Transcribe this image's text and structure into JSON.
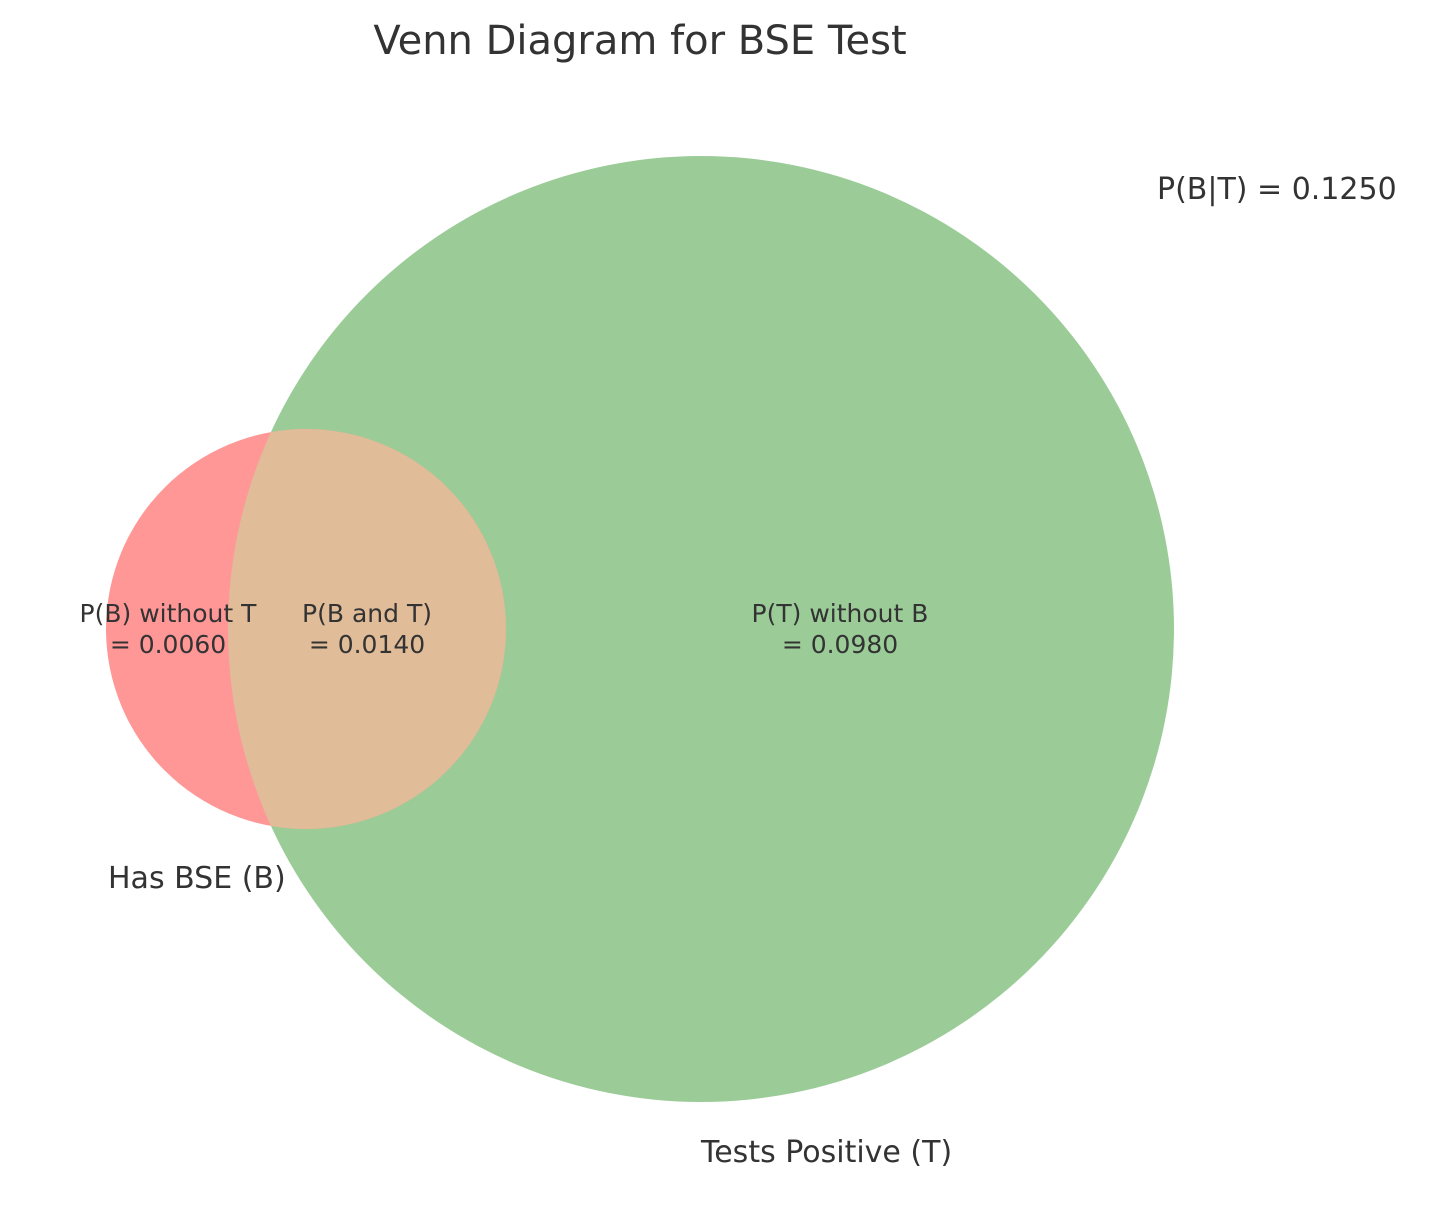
{
  "title": "Venn Diagram for BSE Test",
  "sets": {
    "b": {
      "label": "Has BSE (B)",
      "color": "#ff9797"
    },
    "t": {
      "label": "Tests Positive (T)",
      "color": "#9bcc98"
    },
    "intersection_color": "#e0bc98"
  },
  "regions": {
    "b_only": {
      "line1": "P(B) without T",
      "line2": "= 0.0060",
      "value": 0.006
    },
    "both": {
      "line1": "P(B and T)",
      "line2": "= 0.0140",
      "value": 0.014
    },
    "t_only": {
      "line1": "P(T) without B",
      "line2": "= 0.0980",
      "value": 0.098
    }
  },
  "conditional": {
    "text": "P(B|T) = 0.1250",
    "value": 0.125
  }
}
